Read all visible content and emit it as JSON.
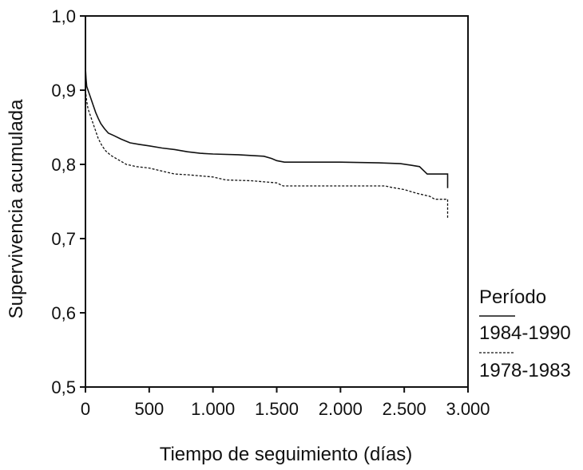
{
  "chart_data": {
    "type": "line",
    "title": "",
    "xlabel": "Tiempo de seguimiento (días)",
    "ylabel": "Supervivencia acumulada",
    "xlim": [
      0,
      3000
    ],
    "ylim": [
      0.5,
      1.0
    ],
    "grid": false,
    "legend_position": "right",
    "legend_title": "Período",
    "x_ticks": [
      {
        "value": 0,
        "label": "0"
      },
      {
        "value": 500,
        "label": "500"
      },
      {
        "value": 1000,
        "label": "1.000"
      },
      {
        "value": 1500,
        "label": "1.500"
      },
      {
        "value": 2000,
        "label": "2.000"
      },
      {
        "value": 2500,
        "label": "2.500"
      },
      {
        "value": 3000,
        "label": "3.000"
      }
    ],
    "y_ticks": [
      {
        "value": 0.5,
        "label": "0,5"
      },
      {
        "value": 0.6,
        "label": "0,6"
      },
      {
        "value": 0.7,
        "label": "0,7"
      },
      {
        "value": 0.8,
        "label": "0,8"
      },
      {
        "value": 0.9,
        "label": "0,9"
      },
      {
        "value": 1.0,
        "label": "1,0"
      }
    ],
    "series": [
      {
        "name": "1984-1990",
        "style": "solid",
        "color": "#111111",
        "points": [
          [
            0,
            0.93
          ],
          [
            5,
            0.915
          ],
          [
            10,
            0.905
          ],
          [
            20,
            0.9
          ],
          [
            40,
            0.89
          ],
          [
            60,
            0.88
          ],
          [
            80,
            0.87
          ],
          [
            100,
            0.862
          ],
          [
            120,
            0.855
          ],
          [
            150,
            0.848
          ],
          [
            180,
            0.842
          ],
          [
            220,
            0.839
          ],
          [
            280,
            0.834
          ],
          [
            350,
            0.829
          ],
          [
            420,
            0.827
          ],
          [
            500,
            0.825
          ],
          [
            600,
            0.822
          ],
          [
            700,
            0.82
          ],
          [
            800,
            0.817
          ],
          [
            900,
            0.815
          ],
          [
            1000,
            0.814
          ],
          [
            1200,
            0.813
          ],
          [
            1400,
            0.811
          ],
          [
            1460,
            0.808
          ],
          [
            1500,
            0.805
          ],
          [
            1560,
            0.803
          ],
          [
            2000,
            0.803
          ],
          [
            2300,
            0.802
          ],
          [
            2470,
            0.801
          ],
          [
            2550,
            0.799
          ],
          [
            2620,
            0.797
          ],
          [
            2680,
            0.787
          ],
          [
            2840,
            0.787
          ],
          [
            2840,
            0.768
          ]
        ]
      },
      {
        "name": "1978-1983",
        "style": "dashed",
        "color": "#111111",
        "points": [
          [
            0,
            0.9
          ],
          [
            10,
            0.885
          ],
          [
            20,
            0.875
          ],
          [
            40,
            0.865
          ],
          [
            60,
            0.855
          ],
          [
            80,
            0.845
          ],
          [
            100,
            0.835
          ],
          [
            130,
            0.825
          ],
          [
            160,
            0.818
          ],
          [
            200,
            0.812
          ],
          [
            260,
            0.806
          ],
          [
            320,
            0.8
          ],
          [
            400,
            0.797
          ],
          [
            500,
            0.795
          ],
          [
            600,
            0.791
          ],
          [
            700,
            0.787
          ],
          [
            800,
            0.786
          ],
          [
            1000,
            0.783
          ],
          [
            1100,
            0.779
          ],
          [
            1300,
            0.778
          ],
          [
            1500,
            0.775
          ],
          [
            1550,
            0.771
          ],
          [
            2000,
            0.771
          ],
          [
            2350,
            0.771
          ],
          [
            2400,
            0.769
          ],
          [
            2500,
            0.766
          ],
          [
            2600,
            0.761
          ],
          [
            2700,
            0.757
          ],
          [
            2740,
            0.753
          ],
          [
            2840,
            0.753
          ],
          [
            2840,
            0.728
          ]
        ]
      }
    ]
  }
}
